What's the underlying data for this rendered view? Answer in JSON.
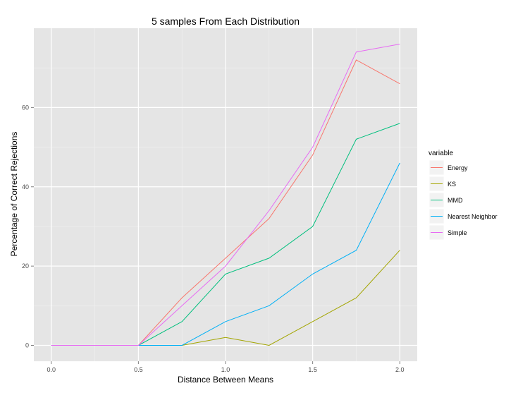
{
  "chart_data": {
    "type": "line",
    "title": "5 samples From Each Distribution",
    "xlabel": "Distance Between Means",
    "ylabel": "Percentage of Correct Rejections",
    "x": [
      0.0,
      0.25,
      0.5,
      0.75,
      1.0,
      1.25,
      1.5,
      1.75,
      2.0
    ],
    "xlim": [
      -0.1,
      2.1
    ],
    "ylim": [
      -4,
      80
    ],
    "xticks": [
      "0.0",
      "0.5",
      "1.0",
      "1.5",
      "2.0"
    ],
    "xtick_values": [
      0.0,
      0.5,
      1.0,
      1.5,
      2.0
    ],
    "yticks": [
      "0",
      "20",
      "40",
      "60"
    ],
    "ytick_values": [
      0,
      20,
      40,
      60
    ],
    "grid": true,
    "legend": {
      "title": "variable",
      "placement": "right"
    },
    "series": [
      {
        "name": "Energy",
        "color": "#F8766D",
        "values": [
          0,
          0,
          0,
          12,
          22,
          32,
          48,
          72,
          66
        ]
      },
      {
        "name": "KS",
        "color": "#A3A500",
        "values": [
          0,
          0,
          0,
          0,
          2,
          0,
          6,
          12,
          24
        ]
      },
      {
        "name": "MMD",
        "color": "#00BF7D",
        "values": [
          0,
          0,
          0,
          6,
          18,
          22,
          30,
          52,
          56
        ]
      },
      {
        "name": "Nearest Neighbor",
        "color": "#00B0F6",
        "values": [
          0,
          0,
          0,
          0,
          6,
          10,
          18,
          24,
          46
        ]
      },
      {
        "name": "Simple",
        "color": "#E76BF3",
        "values": [
          0,
          0,
          0,
          10,
          20,
          34,
          50,
          74,
          76
        ]
      }
    ]
  }
}
